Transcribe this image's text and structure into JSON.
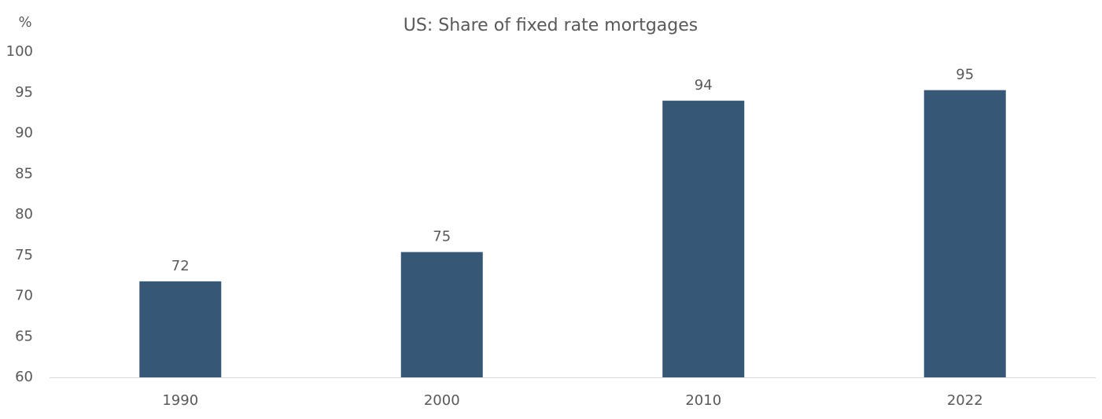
{
  "chart_data": {
    "type": "bar",
    "title": "US: Share of fixed rate mortgages",
    "y_label": "%",
    "categories": [
      "1990",
      "2000",
      "2010",
      "2022"
    ],
    "values": [
      71.8,
      75.4,
      94.0,
      95.3
    ],
    "value_labels": [
      "72",
      "75",
      "94",
      "95"
    ],
    "color": "#375777",
    "ylim": [
      60,
      100
    ],
    "yticks": [
      60,
      65,
      70,
      75,
      80,
      85,
      90,
      95,
      100
    ],
    "grid": false
  }
}
